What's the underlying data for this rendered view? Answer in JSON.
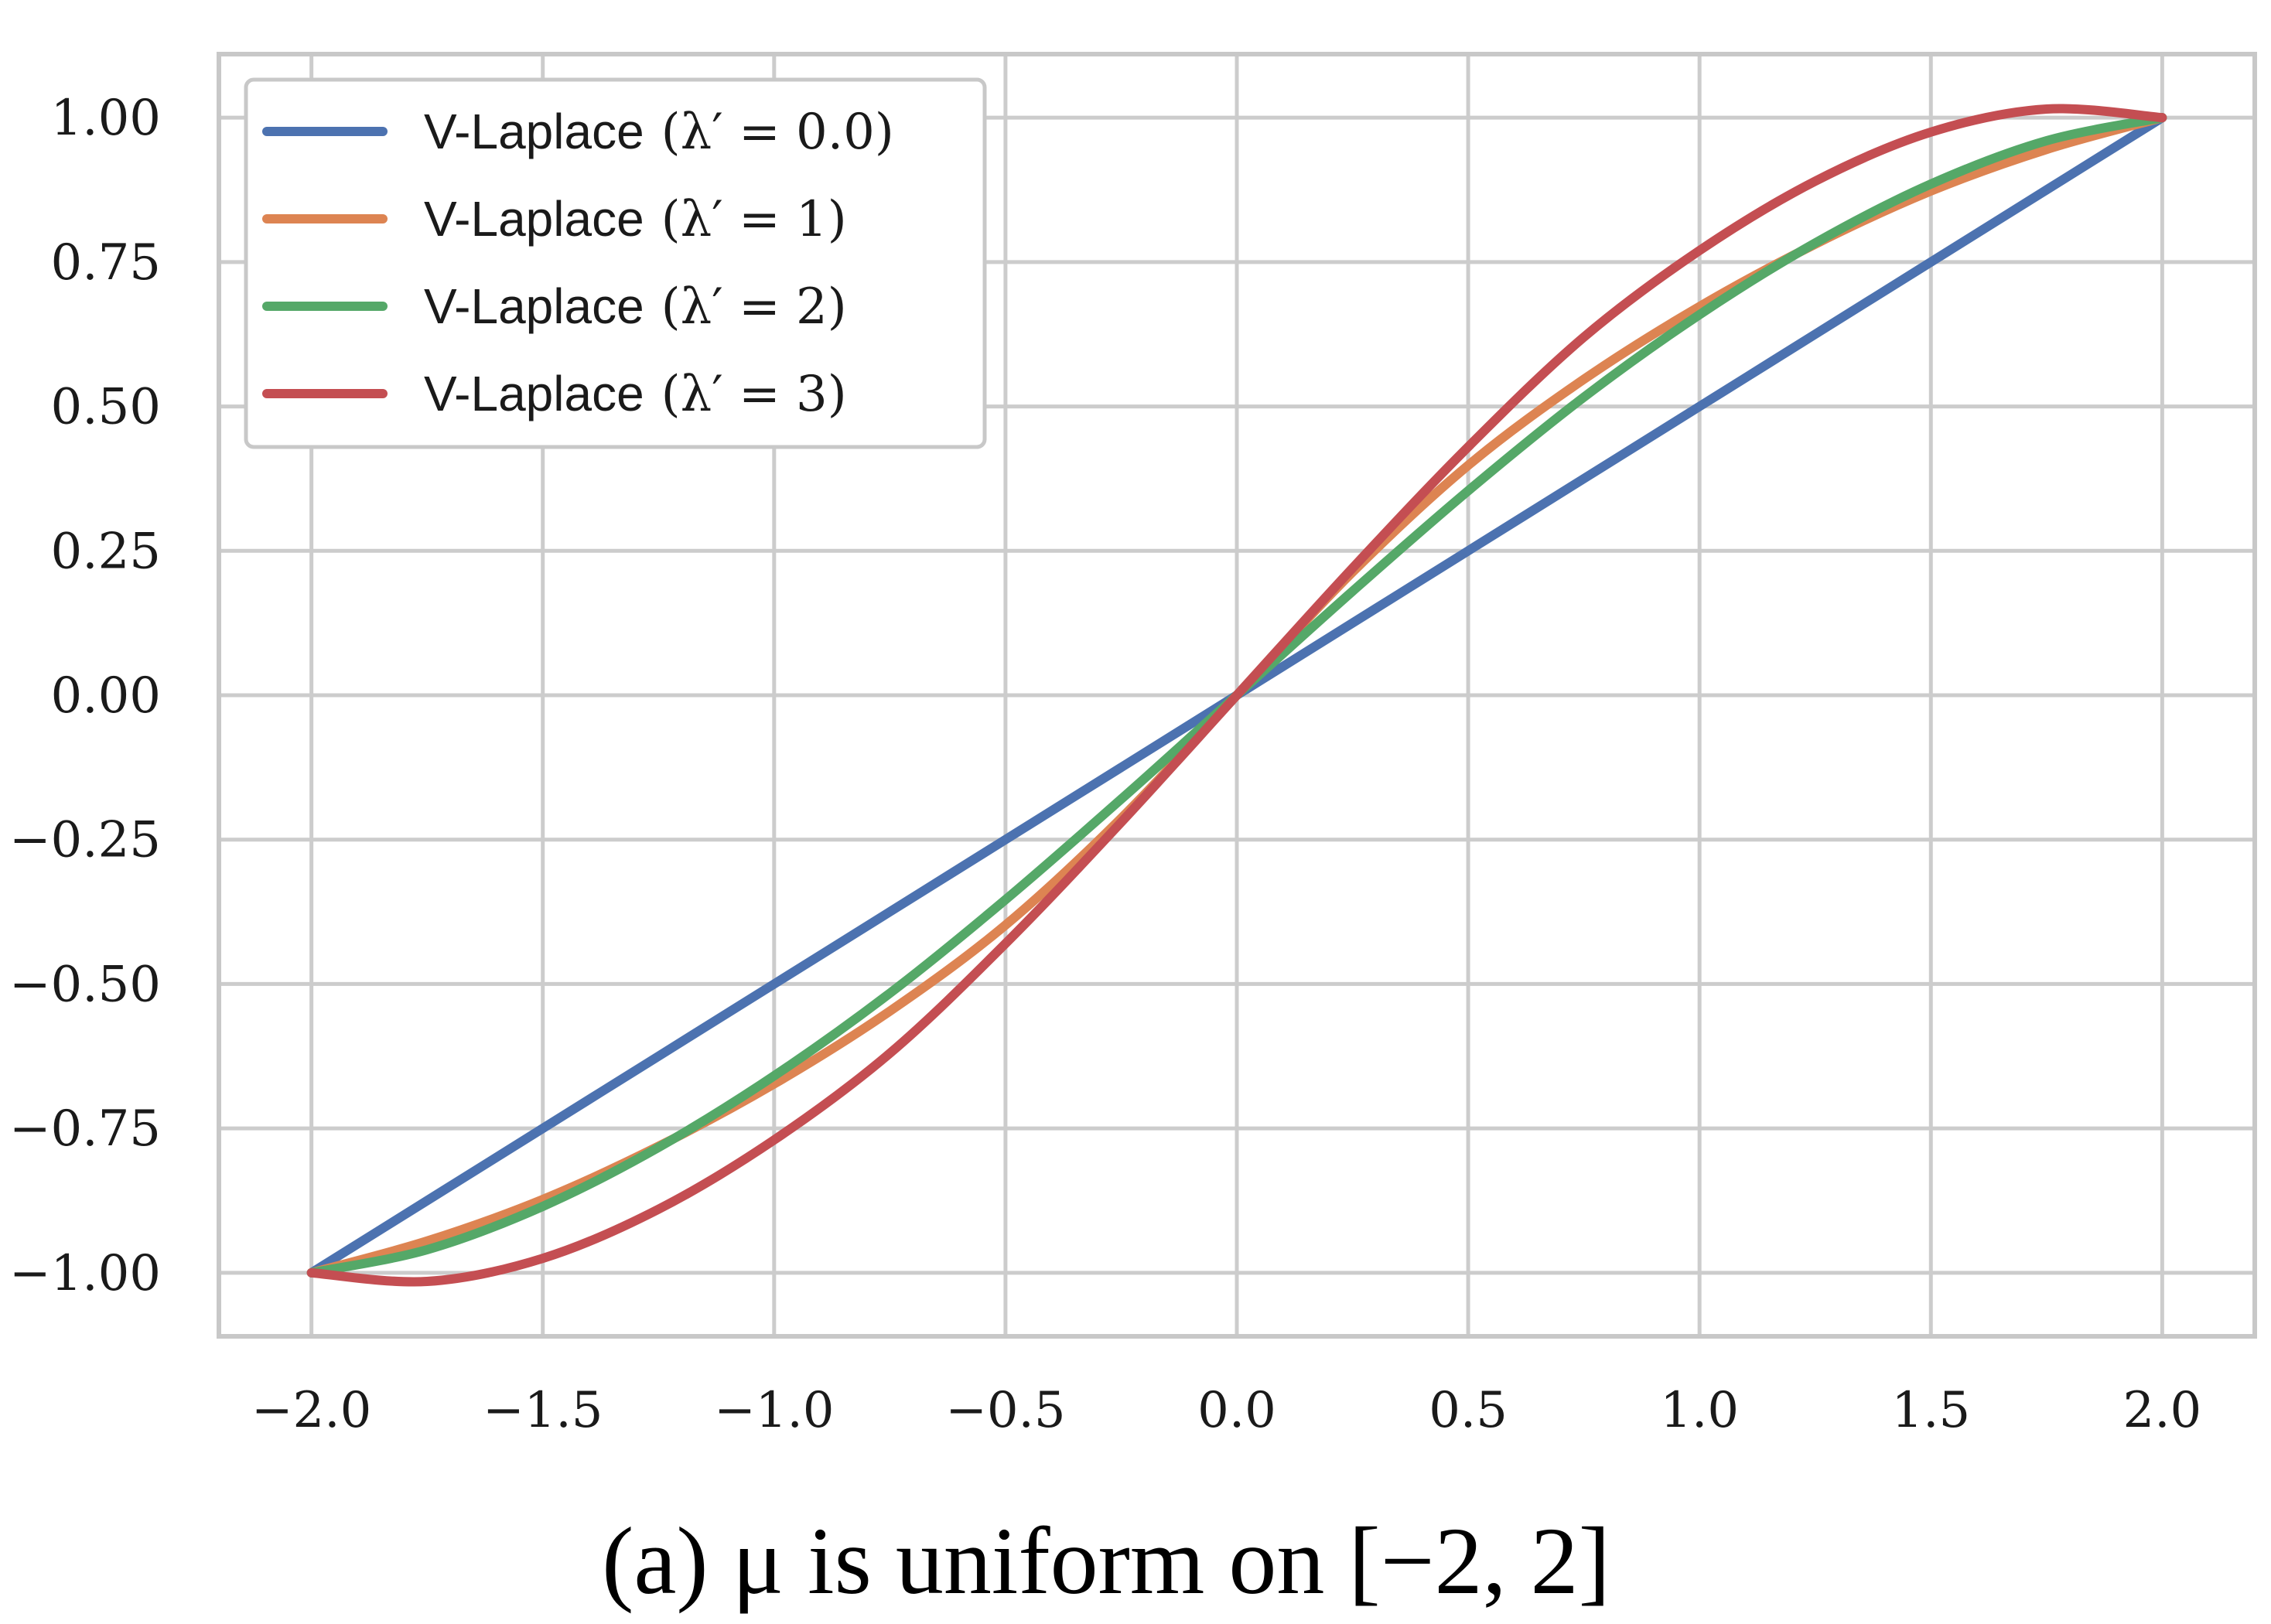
{
  "chart_data": {
    "type": "line",
    "caption": "(a) μ is uniform on [−2, 2]",
    "xlim": [
      -2.2,
      2.2
    ],
    "ylim": [
      -1.11,
      1.11
    ],
    "xticks": [
      -2.0,
      -1.5,
      -1.0,
      -0.5,
      0.0,
      0.5,
      1.0,
      1.5,
      2.0
    ],
    "xtick_labels": [
      "−2.0",
      "−1.5",
      "−1.0",
      "−0.5",
      "0.0",
      "0.5",
      "1.0",
      "1.5",
      "2.0"
    ],
    "yticks": [
      1.0,
      0.75,
      0.5,
      0.25,
      0.0,
      -0.25,
      -0.5,
      -0.75,
      -1.0
    ],
    "ytick_labels": [
      "1.00",
      "0.75",
      "0.50",
      "0.25",
      "0.00",
      "−0.25",
      "−0.50",
      "−0.75",
      "−1.00"
    ],
    "grid": true,
    "legend_position": "top-left",
    "x": [
      -2.0,
      -1.75,
      -1.5,
      -1.25,
      -1.0,
      -0.75,
      -0.5,
      -0.25,
      0.0,
      0.25,
      0.5,
      0.75,
      1.0,
      1.25,
      1.5,
      1.75,
      2.0
    ],
    "series": [
      {
        "name": "V-Laplace (λ′ = 0.0)",
        "legend_prefix": "V-Laplace",
        "legend_math": "(λ′ = 0.0)",
        "color": "#4c72b0",
        "values": [
          -1.0,
          -0.875,
          -0.75,
          -0.625,
          -0.5,
          -0.375,
          -0.25,
          -0.125,
          0.0,
          0.125,
          0.25,
          0.375,
          0.5,
          0.625,
          0.75,
          0.875,
          1.0
        ]
      },
      {
        "name": "V-Laplace (λ′ = 1)",
        "legend_prefix": "V-Laplace",
        "legend_math": "(λ′ = 1)",
        "color": "#dd8452",
        "values": [
          -1.0,
          -0.945,
          -0.873,
          -0.781,
          -0.673,
          -0.547,
          -0.398,
          -0.213,
          0.0,
          0.213,
          0.398,
          0.547,
          0.673,
          0.781,
          0.873,
          0.945,
          1.0
        ]
      },
      {
        "name": "V-Laplace (λ′ = 2)",
        "legend_prefix": "V-Laplace",
        "legend_math": "(λ′ = 2)",
        "color": "#55a868",
        "values": [
          -1.0,
          -0.96,
          -0.885,
          -0.783,
          -0.659,
          -0.516,
          -0.354,
          -0.18,
          0.0,
          0.18,
          0.354,
          0.516,
          0.659,
          0.783,
          0.885,
          0.96,
          1.0
        ]
      },
      {
        "name": "V-Laplace (λ′ = 3)",
        "legend_prefix": "V-Laplace",
        "legend_math": "(λ′ = 3)",
        "color": "#c44e52",
        "values": [
          -1.0,
          -1.015,
          -0.975,
          -0.89,
          -0.77,
          -0.62,
          -0.43,
          -0.22,
          0.0,
          0.22,
          0.43,
          0.62,
          0.77,
          0.89,
          0.975,
          1.015,
          1.0
        ]
      }
    ]
  }
}
